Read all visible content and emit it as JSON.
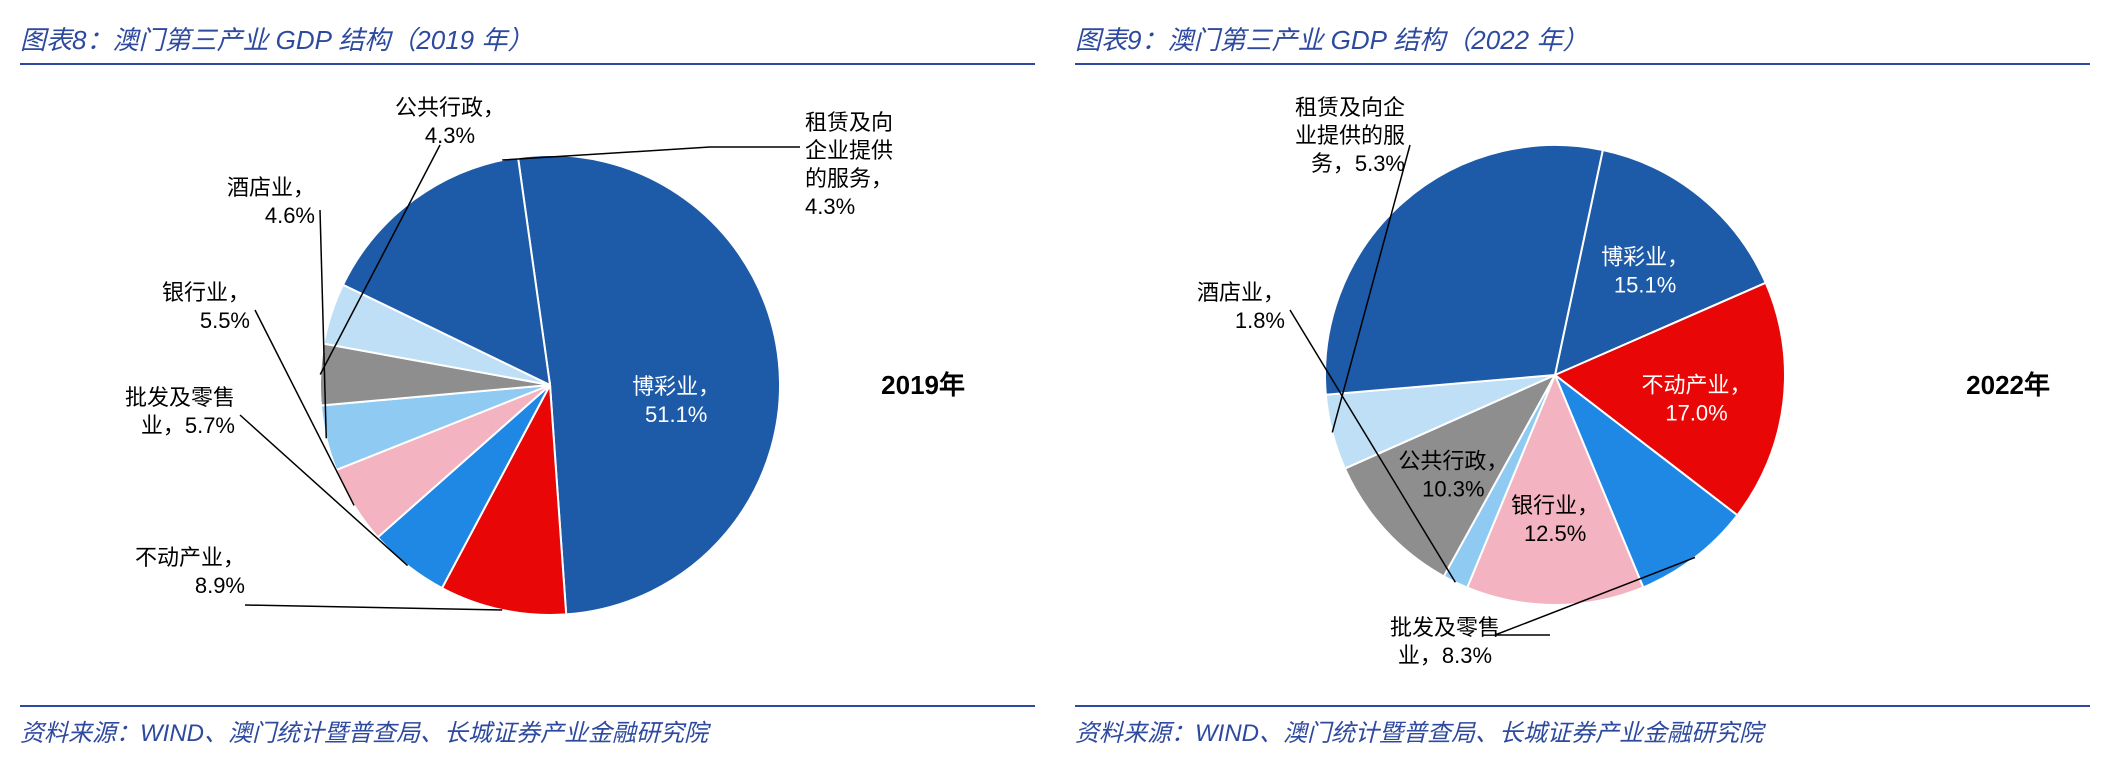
{
  "left": {
    "title": "图表8：澳门第三产业 GDP 结构（2019 年）",
    "year_label": "2019年",
    "source": "资料来源：WIND、澳门统计暨普查局、长城证券产业金融研究院",
    "pie": {
      "type": "pie",
      "radius": 230,
      "other_pct": 15.6,
      "background_color": "#ffffff",
      "fontsize_label": 22,
      "slices": [
        {
          "name": "博彩业",
          "pct": 51.1,
          "color": "#1d5aa8"
        },
        {
          "name": "不动产业",
          "pct": 8.9,
          "color": "#e80606"
        },
        {
          "name": "批发及零售业",
          "pct": 5.7,
          "color": "#1f88e5"
        },
        {
          "name": "银行业",
          "pct": 5.5,
          "color": "#f3b3c0"
        },
        {
          "name": "酒店业",
          "pct": 4.6,
          "color": "#8fcaf3"
        },
        {
          "name": "公共行政",
          "pct": 4.3,
          "color": "#8e8e8e"
        },
        {
          "name": "租赁及向企业提供的服务",
          "pct": 4.3,
          "color": "#bedff5"
        }
      ]
    }
  },
  "right": {
    "title": "图表9：澳门第三产业 GDP 结构（2022 年）",
    "year_label": "2022年",
    "source": "资料来源：WIND、澳门统计暨普查局、长城证券产业金融研究院",
    "pie": {
      "type": "pie",
      "radius": 230,
      "other_pct": 29.7,
      "background_color": "#ffffff",
      "fontsize_label": 22,
      "slices": [
        {
          "name": "博彩业",
          "pct": 15.1,
          "color": "#1d5aa8"
        },
        {
          "name": "不动产业",
          "pct": 17.0,
          "color": "#e80606"
        },
        {
          "name": "批发及零售业",
          "pct": 8.3,
          "color": "#1f88e5"
        },
        {
          "name": "银行业",
          "pct": 12.5,
          "color": "#f3b3c0"
        },
        {
          "name": "酒店业",
          "pct": 1.8,
          "color": "#8fcaf3"
        },
        {
          "name": "公共行政",
          "pct": 10.3,
          "color": "#8e8e8e"
        },
        {
          "name": "租赁及向企业提供的服务",
          "pct": 5.3,
          "color": "#bedff5"
        }
      ]
    }
  }
}
